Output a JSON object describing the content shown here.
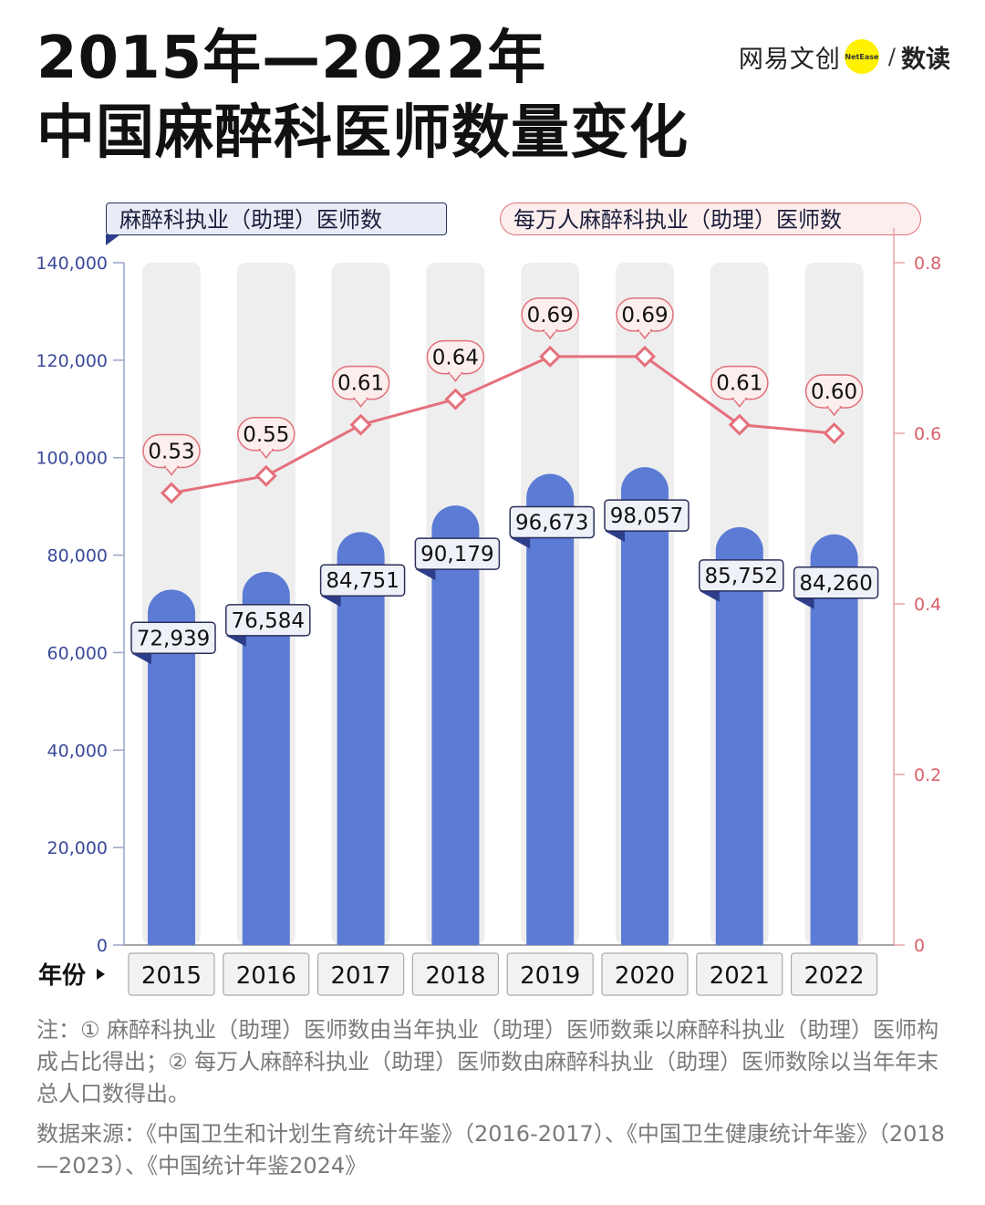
{
  "title": {
    "line1": "2015年—2022年",
    "line2": "中国麻醉科医师数量变化"
  },
  "brand": {
    "name": "网易文创",
    "badge": "NetEase",
    "separator": "/",
    "sub": "数读"
  },
  "legend": {
    "left": "麻醉科执业（助理）医师数",
    "right": "每万人麻醉科执业（助理）医师数"
  },
  "x_axis_label": "年份",
  "chart_data": {
    "type": "bar",
    "categories": [
      "2015",
      "2016",
      "2017",
      "2018",
      "2019",
      "2020",
      "2021",
      "2022"
    ],
    "series": [
      {
        "name": "麻醉科执业（助理）医师数",
        "type": "bar",
        "axis": "left",
        "values": [
          72939,
          76584,
          84751,
          90179,
          96673,
          98057,
          85752,
          84260
        ],
        "labels": [
          "72,939",
          "76,584",
          "84,751",
          "90,179",
          "96,673",
          "98,057",
          "85,752",
          "84,260"
        ],
        "color": "#5b7bd5"
      },
      {
        "name": "每万人麻醉科执业（助理）医师数",
        "type": "line",
        "axis": "right",
        "values": [
          0.53,
          0.55,
          0.61,
          0.64,
          0.69,
          0.69,
          0.61,
          0.6
        ],
        "labels": [
          "0.53",
          "0.55",
          "0.61",
          "0.64",
          "0.69",
          "0.69",
          "0.61",
          "0.60"
        ],
        "color": "#e5707c"
      }
    ],
    "y_left": {
      "range": [
        0,
        140000
      ],
      "ticks": [
        0,
        20000,
        40000,
        60000,
        80000,
        100000,
        120000,
        140000
      ],
      "tick_labels": [
        "0",
        "20,000",
        "40,000",
        "60,000",
        "80,000",
        "100,000",
        "120,000",
        "140,000"
      ],
      "color": "#3b4a9a"
    },
    "y_right": {
      "range": [
        0,
        0.8
      ],
      "ticks": [
        0,
        0.2,
        0.4,
        0.6,
        0.8
      ],
      "tick_labels": [
        "0",
        "0.2",
        "0.4",
        "0.6",
        "0.8"
      ],
      "color": "#d9606c"
    },
    "grid": false,
    "background_track_color": "#eeeeee"
  },
  "note": "注：① 麻醉科执业（助理）医师数由当年执业（助理）医师数乘以麻醉科执业（助理）医师构成占比得出；② 每万人麻醉科执业（助理）医师数由麻醉科执业（助理）医师数除以当年年末总人口数得出。",
  "source": "数据来源：《中国卫生和计划生育统计年鉴》（2016-2017）、《中国卫生健康统计年鉴》（2018—2023）、《中国统计年鉴2024》"
}
